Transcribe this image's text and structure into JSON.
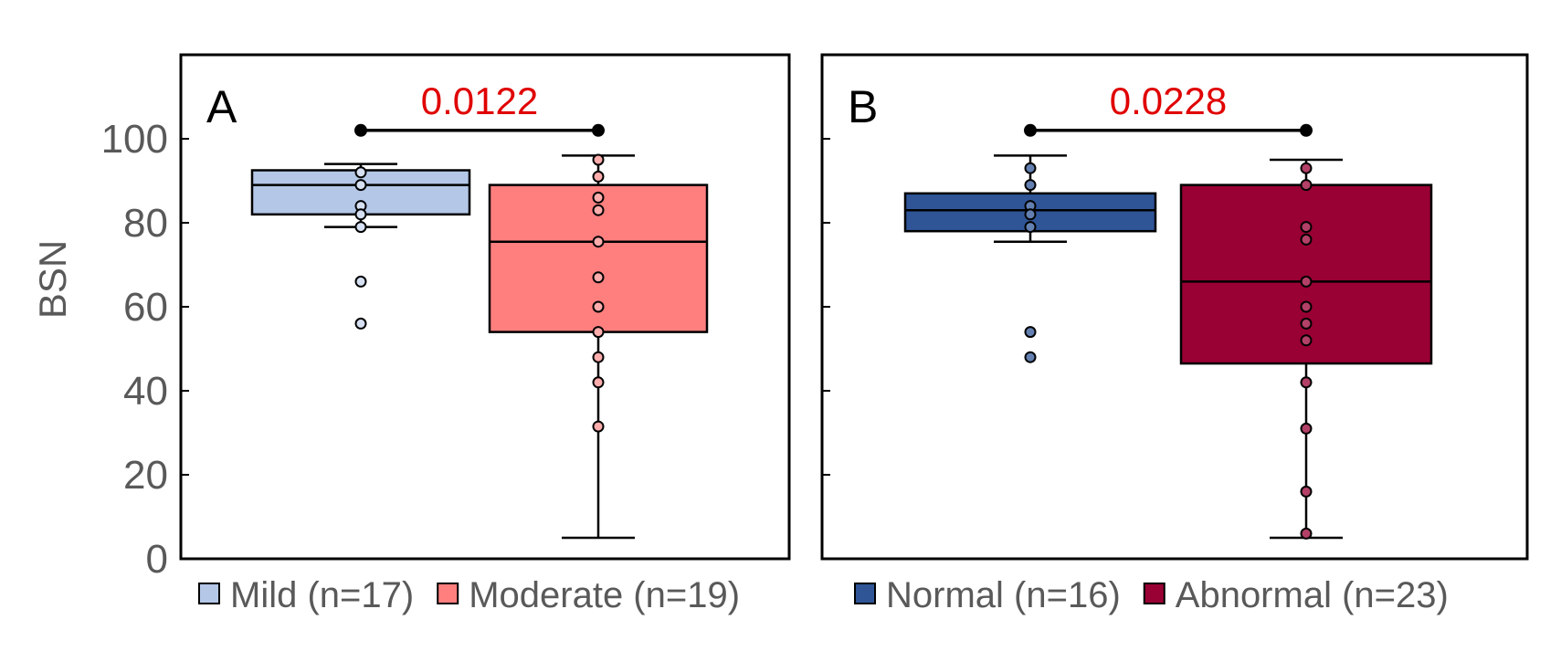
{
  "chart_data": [
    {
      "type": "box",
      "panel_label": "A",
      "ylabel": "BSN",
      "ylim": [
        0,
        120
      ],
      "yticks": [
        0,
        20,
        40,
        60,
        80,
        100
      ],
      "pvalue": "0.0122",
      "groups": [
        {
          "name": "Mild (n=17)",
          "color": "#b4c7e7",
          "whisker_low": 79,
          "q1": 82,
          "median": 89,
          "q3": 92.5,
          "whisker_high": 94,
          "points": [
            92,
            89,
            84,
            82,
            79,
            66,
            56
          ]
        },
        {
          "name": "Moderate (n=19)",
          "color": "#ff7f7f",
          "whisker_low": 5,
          "q1": 54,
          "median": 75.5,
          "q3": 89,
          "whisker_high": 96,
          "points": [
            95,
            91,
            86,
            83,
            75.5,
            67,
            60,
            54,
            48,
            42,
            31.5
          ]
        }
      ]
    },
    {
      "type": "box",
      "panel_label": "B",
      "ylim": [
        0,
        120
      ],
      "yticks": [
        0,
        20,
        40,
        60,
        80,
        100
      ],
      "pvalue": "0.0228",
      "groups": [
        {
          "name": "Normal (n=16)",
          "color": "#2f5597",
          "whisker_low": 75.5,
          "q1": 78,
          "median": 83,
          "q3": 87,
          "whisker_high": 96,
          "points": [
            93,
            89,
            84,
            82,
            79,
            54,
            48
          ]
        },
        {
          "name": "Abnormal (n=23)",
          "color": "#990033",
          "whisker_low": 5,
          "q1": 46.5,
          "median": 66,
          "q3": 89,
          "whisker_high": 95,
          "points": [
            93,
            89,
            79,
            76,
            66,
            60,
            56,
            52,
            42,
            31,
            16,
            6
          ]
        }
      ]
    }
  ]
}
